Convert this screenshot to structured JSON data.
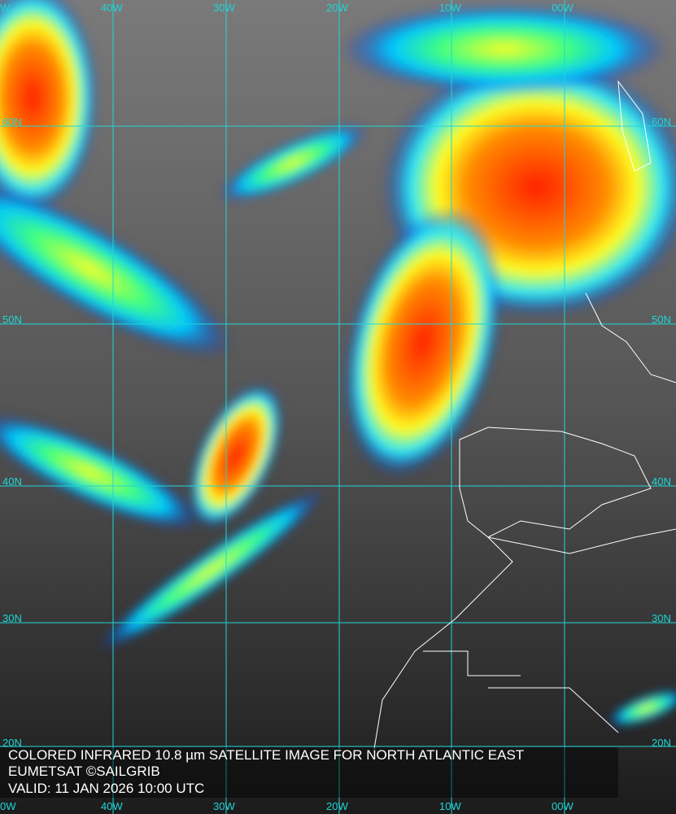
{
  "caption": {
    "title": "COLORED INFRARED 10.8 µm SATELLITE IMAGE FOR NORTH ATLANTIC EAST",
    "credit": "EUMETSAT ©SAILGRIB",
    "valid": "VALID:  11 JAN 2026 10:00 UTC"
  },
  "grid": {
    "longitudes_top": [
      "W",
      "40W",
      "30W",
      "20W",
      "10W",
      "00W"
    ],
    "longitudes_bottom": [
      "0W",
      "40W",
      "30W",
      "20W",
      "10W",
      "00W"
    ],
    "latitudes": [
      "60N",
      "50N",
      "40N",
      "30N",
      "20N"
    ],
    "grid_color": "#1fd6d6"
  },
  "colors": {
    "cold_top": "#ff2a00",
    "mid": "#ffff00",
    "warm": "#00e0ff",
    "edge": "#0022dd",
    "clear": "#3a3a3a"
  }
}
